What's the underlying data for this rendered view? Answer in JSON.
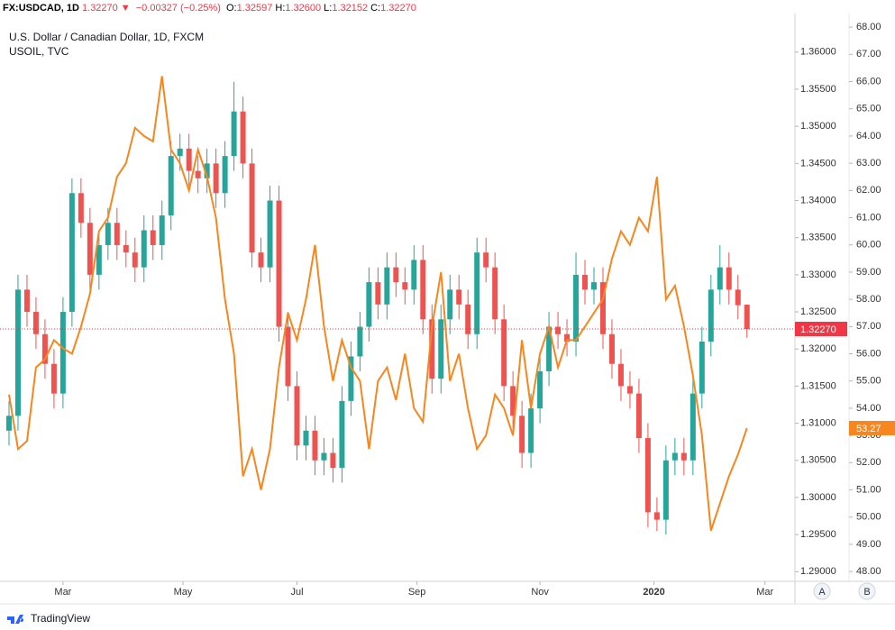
{
  "chart_data": {
    "type": "candlestick",
    "header": {
      "symbol": "FX:USDCAD, 1D",
      "last": "1.32270",
      "arrow": "▼",
      "change": "−0.00327 (−0.25%)",
      "ohlc": [
        {
          "label": "O:",
          "value": "1.32597"
        },
        {
          "label": "H:",
          "value": "1.32600"
        },
        {
          "label": "L:",
          "value": "1.32152"
        },
        {
          "label": "C:",
          "value": "1.32270"
        }
      ]
    },
    "brand": "TradingView",
    "scale_buttons": [
      "A",
      "B"
    ],
    "xlim": [
      -1,
      264
    ],
    "xticks": [
      {
        "value": 20,
        "label": "Mar"
      },
      {
        "value": 60,
        "label": "May"
      },
      {
        "value": 98,
        "label": "Jul"
      },
      {
        "value": 138,
        "label": "Sep"
      },
      {
        "value": 179,
        "label": "Nov"
      },
      {
        "value": 217,
        "label": "2020"
      },
      {
        "value": 254,
        "label": "Mar"
      }
    ],
    "ylim": [
      1.2887,
      1.3652
    ],
    "yticks": [
      {
        "value": 1.29,
        "label": "1.29000"
      },
      {
        "value": 1.295,
        "label": "1.29500"
      },
      {
        "value": 1.3,
        "label": "1.30000"
      },
      {
        "value": 1.305,
        "label": "1.30500"
      },
      {
        "value": 1.31,
        "label": "1.31000"
      },
      {
        "value": 1.315,
        "label": "1.31500"
      },
      {
        "value": 1.32,
        "label": "1.32000"
      },
      {
        "value": 1.325,
        "label": "1.32500"
      },
      {
        "value": 1.33,
        "label": "1.33000"
      },
      {
        "value": 1.335,
        "label": "1.33500"
      },
      {
        "value": 1.34,
        "label": "1.34000"
      },
      {
        "value": 1.345,
        "label": "1.34500"
      },
      {
        "value": 1.35,
        "label": "1.35000"
      },
      {
        "value": 1.355,
        "label": "1.35500"
      },
      {
        "value": 1.36,
        "label": "1.36000"
      }
    ],
    "y2lim": [
      47.64,
      68.5
    ],
    "y2ticks": [
      {
        "value": 48,
        "label": "48.00"
      },
      {
        "value": 49,
        "label": "49.00"
      },
      {
        "value": 50,
        "label": "50.00"
      },
      {
        "value": 51,
        "label": "51.00"
      },
      {
        "value": 52,
        "label": "52.00"
      },
      {
        "value": 53,
        "label": "53.00"
      },
      {
        "value": 54,
        "label": "54.00"
      },
      {
        "value": 55,
        "label": "55.00"
      },
      {
        "value": 56,
        "label": "56.00"
      },
      {
        "value": 57,
        "label": "57.00"
      },
      {
        "value": 58,
        "label": "58.00"
      },
      {
        "value": 59,
        "label": "59.00"
      },
      {
        "value": 60,
        "label": "60.00"
      },
      {
        "value": 61,
        "label": "61.00"
      },
      {
        "value": 62,
        "label": "62.00"
      },
      {
        "value": 63,
        "label": "63.00"
      },
      {
        "value": 64,
        "label": "64.00"
      },
      {
        "value": 65,
        "label": "65.00"
      },
      {
        "value": 66,
        "label": "66.00"
      },
      {
        "value": 67,
        "label": "67.00"
      },
      {
        "value": 68,
        "label": "68.00"
      }
    ],
    "grid": false,
    "x": [
      2,
      5,
      8,
      11,
      14,
      17,
      20,
      23,
      26,
      29,
      32,
      35,
      38,
      41,
      44,
      47,
      50,
      53,
      56,
      59,
      62,
      65,
      68,
      71,
      74,
      77,
      80,
      83,
      86,
      89,
      92,
      95,
      98,
      101,
      104,
      107,
      110,
      113,
      116,
      119,
      122,
      125,
      128,
      131,
      134,
      137,
      140,
      143,
      146,
      149,
      152,
      155,
      158,
      161,
      164,
      167,
      170,
      173,
      176,
      179,
      182,
      185,
      188,
      191,
      194,
      197,
      200,
      203,
      206,
      209,
      212,
      215,
      218,
      221,
      224,
      227,
      230,
      233,
      236,
      239,
      242,
      245,
      248
    ],
    "series": [
      {
        "name": "U.S. Dollar / Canadian Dollar, 1D, FXCM",
        "type": "candlestick",
        "up_color": "#26a69a",
        "down_color": "#ef5350",
        "last_color": "#f23645",
        "open": [
          1.309,
          1.311,
          1.328,
          1.325,
          1.322,
          1.318,
          1.314,
          1.325,
          1.341,
          1.337,
          1.33,
          1.334,
          1.337,
          1.334,
          1.333,
          1.331,
          1.336,
          1.334,
          1.338,
          1.346,
          1.347,
          1.344,
          1.343,
          1.345,
          1.341,
          1.346,
          1.352,
          1.345,
          1.333,
          1.331,
          1.34,
          1.323,
          1.315,
          1.307,
          1.309,
          1.305,
          1.306,
          1.304,
          1.313,
          1.319,
          1.323,
          1.329,
          1.326,
          1.331,
          1.329,
          1.328,
          1.332,
          1.324,
          1.316,
          1.324,
          1.328,
          1.326,
          1.322,
          1.333,
          1.331,
          1.324,
          1.315,
          1.311,
          1.306,
          1.312,
          1.317,
          1.323,
          1.322,
          1.321,
          1.33,
          1.328,
          1.329,
          1.322,
          1.318,
          1.315,
          1.314,
          1.308,
          1.298,
          1.297,
          1.305,
          1.306,
          1.305,
          1.314,
          1.321,
          1.328,
          1.331,
          1.328,
          1.32597
        ],
        "high": [
          1.313,
          1.33,
          1.33,
          1.327,
          1.324,
          1.32,
          1.327,
          1.343,
          1.343,
          1.339,
          1.336,
          1.339,
          1.339,
          1.336,
          1.335,
          1.338,
          1.338,
          1.34,
          1.348,
          1.349,
          1.349,
          1.346,
          1.347,
          1.347,
          1.348,
          1.356,
          1.354,
          1.347,
          1.335,
          1.342,
          1.342,
          1.325,
          1.317,
          1.311,
          1.311,
          1.308,
          1.308,
          1.315,
          1.321,
          1.325,
          1.331,
          1.331,
          1.333,
          1.333,
          1.331,
          1.334,
          1.334,
          1.326,
          1.326,
          1.33,
          1.33,
          1.328,
          1.335,
          1.335,
          1.333,
          1.326,
          1.317,
          1.313,
          1.314,
          1.319,
          1.325,
          1.325,
          1.324,
          1.333,
          1.332,
          1.331,
          1.331,
          1.324,
          1.32,
          1.317,
          1.316,
          1.31,
          1.3,
          1.307,
          1.308,
          1.308,
          1.316,
          1.323,
          1.33,
          1.334,
          1.333,
          1.33,
          1.326
        ],
        "low": [
          1.307,
          1.309,
          1.323,
          1.32,
          1.316,
          1.312,
          1.312,
          1.323,
          1.335,
          1.328,
          1.328,
          1.332,
          1.332,
          1.331,
          1.329,
          1.329,
          1.332,
          1.332,
          1.336,
          1.344,
          1.342,
          1.341,
          1.341,
          1.339,
          1.339,
          1.344,
          1.343,
          1.331,
          1.329,
          1.329,
          1.321,
          1.313,
          1.305,
          1.305,
          1.303,
          1.303,
          1.302,
          1.302,
          1.311,
          1.317,
          1.321,
          1.324,
          1.324,
          1.327,
          1.326,
          1.326,
          1.322,
          1.314,
          1.314,
          1.322,
          1.324,
          1.32,
          1.32,
          1.329,
          1.322,
          1.313,
          1.309,
          1.304,
          1.304,
          1.31,
          1.315,
          1.32,
          1.319,
          1.319,
          1.326,
          1.326,
          1.32,
          1.316,
          1.313,
          1.312,
          1.306,
          1.296,
          1.2955,
          1.295,
          1.303,
          1.303,
          1.303,
          1.312,
          1.319,
          1.326,
          1.326,
          1.324,
          1.32152
        ],
        "close": [
          1.311,
          1.328,
          1.325,
          1.322,
          1.318,
          1.314,
          1.325,
          1.341,
          1.337,
          1.33,
          1.334,
          1.337,
          1.334,
          1.333,
          1.331,
          1.336,
          1.334,
          1.338,
          1.346,
          1.347,
          1.344,
          1.343,
          1.345,
          1.341,
          1.346,
          1.352,
          1.345,
          1.333,
          1.331,
          1.34,
          1.323,
          1.315,
          1.307,
          1.309,
          1.305,
          1.306,
          1.304,
          1.313,
          1.319,
          1.323,
          1.329,
          1.326,
          1.331,
          1.329,
          1.328,
          1.332,
          1.324,
          1.316,
          1.324,
          1.328,
          1.326,
          1.322,
          1.333,
          1.331,
          1.324,
          1.315,
          1.311,
          1.306,
          1.312,
          1.317,
          1.323,
          1.322,
          1.321,
          1.33,
          1.328,
          1.329,
          1.322,
          1.318,
          1.315,
          1.314,
          1.308,
          1.298,
          1.297,
          1.305,
          1.306,
          1.305,
          1.314,
          1.321,
          1.328,
          1.331,
          1.328,
          1.3259,
          1.3227
        ]
      },
      {
        "name": "USOIL, TVC",
        "type": "line",
        "axis": "y2",
        "color": "#f7861e",
        "values": [
          54.5,
          52.5,
          52.8,
          55.5,
          55.8,
          56.5,
          56.2,
          56.0,
          57.0,
          58.2,
          60.5,
          61.0,
          62.5,
          63.0,
          64.3,
          64.0,
          63.8,
          66.2,
          63.5,
          63.0,
          62.0,
          63.5,
          62.5,
          61.0,
          58.0,
          56.0,
          51.5,
          52.5,
          51.0,
          52.5,
          55.5,
          57.5,
          56.5,
          58.0,
          60.0,
          57.0,
          55.0,
          56.5,
          55.5,
          55.0,
          52.5,
          55.0,
          55.5,
          54.3,
          56.0,
          54.0,
          53.5,
          57.0,
          59.0,
          55.0,
          56.0,
          54.0,
          52.5,
          53.0,
          54.5,
          54.0,
          53.0,
          56.5,
          54.0,
          56.0,
          57.0,
          55.5,
          56.5,
          56.5,
          57.0,
          57.5,
          58.0,
          59.5,
          60.5,
          60.0,
          61.0,
          60.5,
          62.5,
          58.0,
          58.5,
          57.0,
          55.2,
          53.0,
          49.5,
          50.5,
          51.5,
          52.3,
          53.27
        ]
      }
    ]
  }
}
